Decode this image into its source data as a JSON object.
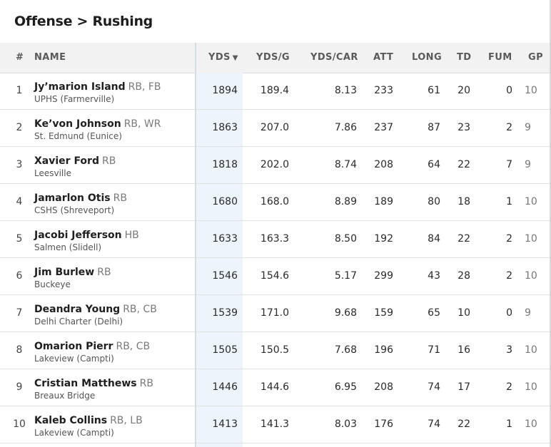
{
  "breadcrumb": "Offense > Rushing",
  "columns": {
    "rank": "#",
    "name": "NAME",
    "yds": "YDS",
    "yds_sort": "▼",
    "ydsg": "YDS/G",
    "ydscar": "YDS/CAR",
    "att": "ATT",
    "long": "LONG",
    "td": "TD",
    "fum": "FUM",
    "gp": "GP"
  },
  "rows": [
    {
      "rank": "1",
      "name": "Jy’marion Island",
      "pos": "RB, FB",
      "school": "UPHS (Farmerville)",
      "yds": "1894",
      "ydsg": "189.4",
      "ydscar": "8.13",
      "att": "233",
      "long": "61",
      "td": "20",
      "fum": "0",
      "gp": "10"
    },
    {
      "rank": "2",
      "name": "Ke’von Johnson",
      "pos": "RB, WR",
      "school": "St. Edmund (Eunice)",
      "yds": "1863",
      "ydsg": "207.0",
      "ydscar": "7.86",
      "att": "237",
      "long": "87",
      "td": "23",
      "fum": "2",
      "gp": "9"
    },
    {
      "rank": "3",
      "name": "Xavier Ford",
      "pos": "RB",
      "school": "Leesville",
      "yds": "1818",
      "ydsg": "202.0",
      "ydscar": "8.74",
      "att": "208",
      "long": "64",
      "td": "22",
      "fum": "7",
      "gp": "9"
    },
    {
      "rank": "4",
      "name": "Jamarlon Otis",
      "pos": "RB",
      "school": "CSHS (Shreveport)",
      "yds": "1680",
      "ydsg": "168.0",
      "ydscar": "8.89",
      "att": "189",
      "long": "80",
      "td": "18",
      "fum": "1",
      "gp": "10"
    },
    {
      "rank": "5",
      "name": "Jacobi Jefferson",
      "pos": "HB",
      "school": "Salmen (Slidell)",
      "yds": "1633",
      "ydsg": "163.3",
      "ydscar": "8.50",
      "att": "192",
      "long": "84",
      "td": "22",
      "fum": "2",
      "gp": "10"
    },
    {
      "rank": "6",
      "name": "Jim Burlew",
      "pos": "RB",
      "school": "Buckeye",
      "yds": "1546",
      "ydsg": "154.6",
      "ydscar": "5.17",
      "att": "299",
      "long": "43",
      "td": "28",
      "fum": "2",
      "gp": "10"
    },
    {
      "rank": "7",
      "name": "Deandra Young",
      "pos": "RB, CB",
      "school": "Delhi Charter (Delhi)",
      "yds": "1539",
      "ydsg": "171.0",
      "ydscar": "9.68",
      "att": "159",
      "long": "65",
      "td": "10",
      "fum": "0",
      "gp": "9"
    },
    {
      "rank": "8",
      "name": "Omarion Pierr",
      "pos": "RB, CB",
      "school": "Lakeview (Campti)",
      "yds": "1505",
      "ydsg": "150.5",
      "ydscar": "7.68",
      "att": "196",
      "long": "71",
      "td": "16",
      "fum": "3",
      "gp": "10"
    },
    {
      "rank": "9",
      "name": "Cristian Matthews",
      "pos": "RB",
      "school": "Breaux Bridge",
      "yds": "1446",
      "ydsg": "144.6",
      "ydscar": "6.95",
      "att": "208",
      "long": "74",
      "td": "17",
      "fum": "2",
      "gp": "10"
    },
    {
      "rank": "10",
      "name": "Kaleb Collins",
      "pos": "RB, LB",
      "school": "Lakeview (Campti)",
      "yds": "1413",
      "ydsg": "141.3",
      "ydscar": "8.03",
      "att": "176",
      "long": "74",
      "td": "22",
      "fum": "1",
      "gp": "10"
    }
  ]
}
